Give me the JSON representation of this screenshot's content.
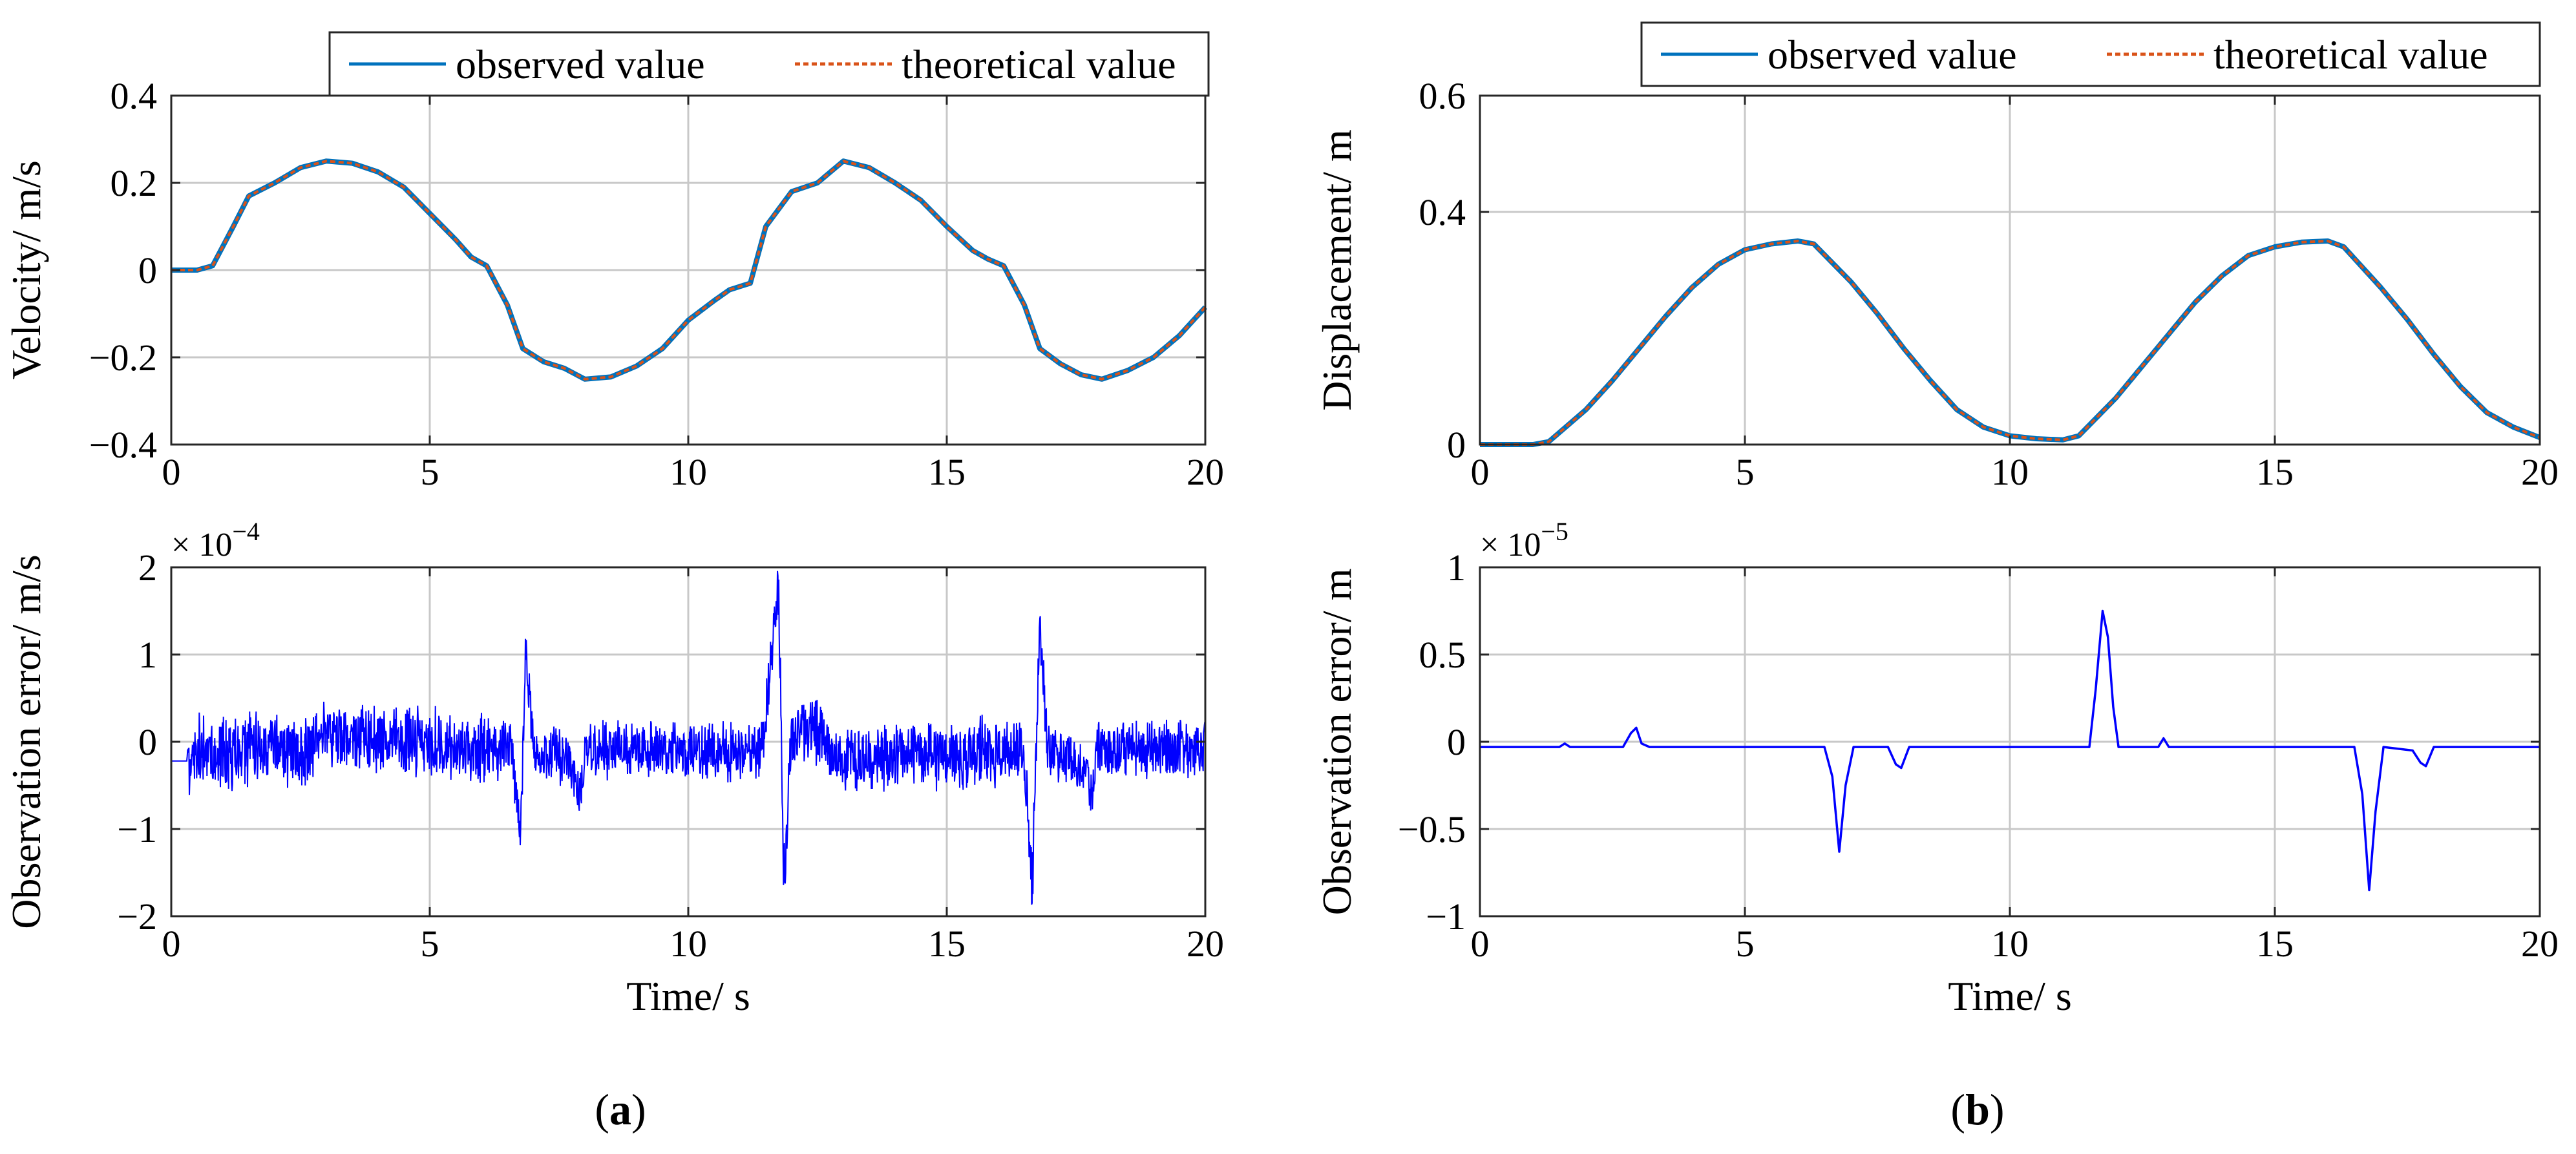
{
  "colors": {
    "observed": "#0072BD",
    "theoretical": "#D95319",
    "error": "#0000FF",
    "grid": "#C8C8C8",
    "axis": "#262626"
  },
  "chart_data": [
    {
      "panel": "(a)",
      "panel_letter": "a",
      "type": "line",
      "xlabel": "",
      "ylabel": "Velocity/ m/s",
      "xlim": [
        0,
        20
      ],
      "ylim": [
        -0.4,
        0.4
      ],
      "xticks": [
        "0",
        "5",
        "10",
        "15",
        "20"
      ],
      "yticks": [
        "−0.4",
        "−0.2",
        "0",
        "0.2",
        "0.4"
      ],
      "grid": true,
      "legend_position": "top-right, above plot",
      "series": [
        {
          "name": "observed value",
          "style": "solid",
          "x": [
            0,
            0.5,
            0.8,
            1.2,
            1.5,
            2,
            2.5,
            3,
            3.5,
            4,
            4.5,
            5,
            5.5,
            5.8,
            6.1,
            6.5,
            6.8,
            7.2,
            7.6,
            8,
            8.5,
            9,
            9.5,
            10,
            10.5,
            10.8,
            11.2,
            11.5,
            12,
            12.5,
            13,
            13.5,
            14,
            14.5,
            15,
            15.5,
            15.8,
            16.1,
            16.5,
            16.8,
            17.2,
            17.6,
            18,
            18.5,
            19,
            19.5,
            20
          ],
          "y": [
            0,
            0,
            0.01,
            0.1,
            0.17,
            0.2,
            0.235,
            0.25,
            0.245,
            0.225,
            0.19,
            0.13,
            0.07,
            0.03,
            0.01,
            -0.08,
            -0.18,
            -0.21,
            -0.225,
            -0.25,
            -0.245,
            -0.22,
            -0.18,
            -0.115,
            -0.07,
            -0.045,
            -0.03,
            0.1,
            0.18,
            0.2,
            0.25,
            0.235,
            0.2,
            0.16,
            0.1,
            0.045,
            0.025,
            0.01,
            -0.08,
            -0.18,
            -0.215,
            -0.24,
            -0.25,
            -0.23,
            -0.2,
            -0.15,
            -0.085
          ]
        },
        {
          "name": "theoretical value",
          "style": "dashed",
          "x": [
            0,
            0.5,
            0.8,
            1.2,
            1.5,
            2,
            2.5,
            3,
            3.5,
            4,
            4.5,
            5,
            5.5,
            5.8,
            6.1,
            6.5,
            6.8,
            7.2,
            7.6,
            8,
            8.5,
            9,
            9.5,
            10,
            10.5,
            10.8,
            11.2,
            11.5,
            12,
            12.5,
            13,
            13.5,
            14,
            14.5,
            15,
            15.5,
            15.8,
            16.1,
            16.5,
            16.8,
            17.2,
            17.6,
            18,
            18.5,
            19,
            19.5,
            20
          ],
          "y": [
            0,
            0,
            0.01,
            0.1,
            0.17,
            0.2,
            0.235,
            0.25,
            0.245,
            0.225,
            0.19,
            0.13,
            0.07,
            0.03,
            0.01,
            -0.08,
            -0.18,
            -0.21,
            -0.225,
            -0.25,
            -0.245,
            -0.22,
            -0.18,
            -0.115,
            -0.07,
            -0.045,
            -0.03,
            0.1,
            0.18,
            0.2,
            0.25,
            0.235,
            0.2,
            0.16,
            0.1,
            0.045,
            0.025,
            0.01,
            -0.08,
            -0.18,
            -0.215,
            -0.24,
            -0.25,
            -0.23,
            -0.2,
            -0.15,
            -0.085
          ]
        }
      ]
    },
    {
      "panel": "(a)",
      "type": "line",
      "xlabel": "Time/ s",
      "ylabel": "Observation error/ m/s",
      "y_exponent_base": "× 10",
      "y_exponent": "−4",
      "xlim": [
        0,
        20
      ],
      "ylim": [
        -2,
        2
      ],
      "xticks": [
        "0",
        "5",
        "10",
        "15",
        "20"
      ],
      "yticks": [
        "−2",
        "−1",
        "0",
        "1",
        "2"
      ],
      "grid": true,
      "series": [
        {
          "style": "noisy",
          "offset": [
            [
              0,
              -0.22
            ],
            [
              0.3,
              -0.22
            ],
            [
              0.4,
              -0.1
            ],
            [
              2.7,
              -0.1
            ],
            [
              2.8,
              0.1
            ],
            [
              6.6,
              -0.1
            ],
            [
              6.75,
              -1.2
            ],
            [
              6.85,
              1.0
            ],
            [
              7.0,
              -0.1
            ],
            [
              7.7,
              -0.2
            ],
            [
              7.9,
              -0.7
            ],
            [
              8.0,
              -0.1
            ],
            [
              11.4,
              -0.1
            ],
            [
              11.6,
              0.8
            ],
            [
              11.75,
              1.8
            ],
            [
              11.85,
              -1.6
            ],
            [
              12.0,
              0.1
            ],
            [
              12.6,
              0.1
            ],
            [
              12.8,
              -0.2
            ],
            [
              16.5,
              -0.1
            ],
            [
              16.65,
              -1.7
            ],
            [
              16.8,
              1.3
            ],
            [
              16.95,
              -0.1
            ],
            [
              17.7,
              -0.3
            ],
            [
              17.8,
              -0.6
            ],
            [
              17.9,
              -0.1
            ],
            [
              20,
              -0.1
            ]
          ],
          "noise_amplitude": [
            [
              0,
              0
            ],
            [
              0.3,
              0
            ],
            [
              0.35,
              0.5
            ],
            [
              2.6,
              0.5
            ],
            [
              2.8,
              0.4
            ],
            [
              6.0,
              0.45
            ],
            [
              7.1,
              0.35
            ],
            [
              11.3,
              0.4
            ],
            [
              12.2,
              0.45
            ],
            [
              16.4,
              0.45
            ],
            [
              17.2,
              0.35
            ],
            [
              20,
              0.4
            ]
          ]
        }
      ]
    },
    {
      "panel": "(b)",
      "panel_letter": "b",
      "type": "line",
      "xlabel": "",
      "ylabel": "Displacement/ m",
      "xlim": [
        0,
        20
      ],
      "ylim": [
        0,
        0.6
      ],
      "xticks": [
        "0",
        "5",
        "10",
        "15",
        "20"
      ],
      "yticks": [
        "0",
        "0.4",
        "0.6"
      ],
      "ytick_values": [
        0,
        0.4,
        0.6
      ],
      "grid": true,
      "legend_position": "top-right, above plot",
      "series": [
        {
          "name": "observed value",
          "style": "solid",
          "x": [
            0,
            1,
            1.3,
            2,
            2.5,
            3,
            3.5,
            4,
            4.5,
            5,
            5.5,
            6,
            6.3,
            7,
            7.5,
            8,
            8.5,
            9,
            9.5,
            10,
            10.5,
            11,
            11.3,
            12,
            12.5,
            13,
            13.5,
            14,
            14.5,
            15,
            15.5,
            16,
            16.3,
            17,
            17.5,
            18,
            18.5,
            19,
            19.5,
            20
          ],
          "y": [
            0,
            0,
            0.005,
            0.06,
            0.11,
            0.165,
            0.22,
            0.27,
            0.31,
            0.335,
            0.345,
            0.35,
            0.345,
            0.28,
            0.225,
            0.165,
            0.11,
            0.06,
            0.03,
            0.015,
            0.01,
            0.008,
            0.015,
            0.08,
            0.135,
            0.19,
            0.245,
            0.29,
            0.325,
            0.34,
            0.348,
            0.35,
            0.34,
            0.27,
            0.215,
            0.155,
            0.1,
            0.055,
            0.03,
            0.012
          ]
        },
        {
          "name": "theoretical value",
          "style": "dashed",
          "x": [
            0,
            1,
            1.3,
            2,
            2.5,
            3,
            3.5,
            4,
            4.5,
            5,
            5.5,
            6,
            6.3,
            7,
            7.5,
            8,
            8.5,
            9,
            9.5,
            10,
            10.5,
            11,
            11.3,
            12,
            12.5,
            13,
            13.5,
            14,
            14.5,
            15,
            15.5,
            16,
            16.3,
            17,
            17.5,
            18,
            18.5,
            19,
            19.5,
            20
          ],
          "y": [
            0,
            0,
            0.005,
            0.06,
            0.11,
            0.165,
            0.22,
            0.27,
            0.31,
            0.335,
            0.345,
            0.35,
            0.345,
            0.28,
            0.225,
            0.165,
            0.11,
            0.06,
            0.03,
            0.015,
            0.01,
            0.008,
            0.015,
            0.08,
            0.135,
            0.19,
            0.245,
            0.29,
            0.325,
            0.34,
            0.348,
            0.35,
            0.34,
            0.27,
            0.215,
            0.155,
            0.1,
            0.055,
            0.03,
            0.012
          ]
        }
      ]
    },
    {
      "panel": "(b)",
      "type": "line",
      "xlabel": "Time/ s",
      "ylabel": "Observation error/ m",
      "y_exponent_base": "× 10",
      "y_exponent": "−5",
      "xlim": [
        0,
        20
      ],
      "ylim": [
        -1,
        1
      ],
      "xticks": [
        "0",
        "5",
        "10",
        "15",
        "20"
      ],
      "yticks": [
        "−1",
        "−0.5",
        "0",
        "0.5",
        "1"
      ],
      "grid": true,
      "series": [
        {
          "style": "solid",
          "x": [
            0,
            1.5,
            1.6,
            1.7,
            2.7,
            2.85,
            2.95,
            3.05,
            3.2,
            6.5,
            6.65,
            6.78,
            6.9,
            7.05,
            7.7,
            7.85,
            7.95,
            8.1,
            11.5,
            11.62,
            11.75,
            11.85,
            11.95,
            12.05,
            12.8,
            12.9,
            13.0,
            16.5,
            16.65,
            16.78,
            16.9,
            17.05,
            17.6,
            17.75,
            17.85,
            18.0,
            20
          ],
          "y": [
            -0.03,
            -0.03,
            -0.01,
            -0.03,
            -0.03,
            0.05,
            0.08,
            -0.01,
            -0.03,
            -0.03,
            -0.2,
            -0.63,
            -0.25,
            -0.03,
            -0.03,
            -0.13,
            -0.15,
            -0.03,
            -0.03,
            0.3,
            0.75,
            0.6,
            0.2,
            -0.03,
            -0.03,
            0.02,
            -0.03,
            -0.03,
            -0.3,
            -0.85,
            -0.4,
            -0.03,
            -0.05,
            -0.12,
            -0.14,
            -0.03,
            -0.03
          ]
        }
      ]
    }
  ]
}
